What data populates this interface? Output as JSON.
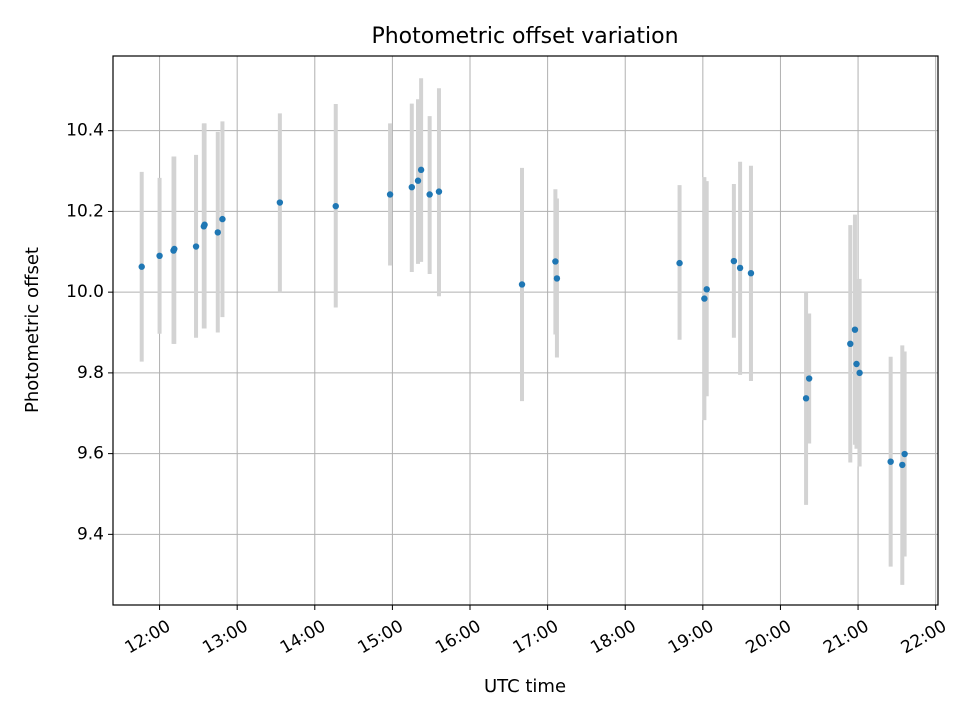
{
  "chart_data": {
    "type": "scatter",
    "title": "Photometric offset variation",
    "xlabel": "UTC time",
    "ylabel": "Photometric offset",
    "x_unit": "hours UTC",
    "xlim": [
      11.4,
      22.03
    ],
    "ylim": [
      9.225,
      10.585
    ],
    "grid": true,
    "x_ticks": [
      {
        "value": 12,
        "label": "12:00"
      },
      {
        "value": 13,
        "label": "13:00"
      },
      {
        "value": 14,
        "label": "14:00"
      },
      {
        "value": 15,
        "label": "15:00"
      },
      {
        "value": 16,
        "label": "16:00"
      },
      {
        "value": 17,
        "label": "17:00"
      },
      {
        "value": 18,
        "label": "18:00"
      },
      {
        "value": 19,
        "label": "19:00"
      },
      {
        "value": 20,
        "label": "20:00"
      },
      {
        "value": 21,
        "label": "21:00"
      },
      {
        "value": 22,
        "label": "22:00"
      }
    ],
    "y_ticks": [
      {
        "value": 9.4,
        "label": "9.4"
      },
      {
        "value": 9.6,
        "label": "9.6"
      },
      {
        "value": 9.8,
        "label": "9.8"
      },
      {
        "value": 10.0,
        "label": "10.0"
      },
      {
        "value": 10.2,
        "label": "10.2"
      },
      {
        "value": 10.4,
        "label": "10.4"
      }
    ],
    "colors": {
      "point": "#1f77b4",
      "errorbar": "#d3d3d3",
      "grid": "#b0b0b0"
    },
    "points": [
      {
        "x": 11.77,
        "y": 10.063,
        "low": 9.828,
        "high": 10.298
      },
      {
        "x": 12.0,
        "y": 10.09,
        "low": 9.897,
        "high": 10.283
      },
      {
        "x": 12.18,
        "y": 10.103,
        "low": 9.872,
        "high": 10.336
      },
      {
        "x": 12.19,
        "y": 10.107,
        "low": 9.872,
        "high": 10.336
      },
      {
        "x": 12.47,
        "y": 10.113,
        "low": 9.887,
        "high": 10.34
      },
      {
        "x": 12.57,
        "y": 10.163,
        "low": 9.91,
        "high": 10.418
      },
      {
        "x": 12.58,
        "y": 10.167,
        "low": 9.91,
        "high": 10.418
      },
      {
        "x": 12.75,
        "y": 10.148,
        "low": 9.9,
        "high": 10.397
      },
      {
        "x": 12.81,
        "y": 10.181,
        "low": 9.938,
        "high": 10.423
      },
      {
        "x": 13.55,
        "y": 10.222,
        "low": 10.0,
        "high": 10.443
      },
      {
        "x": 14.27,
        "y": 10.213,
        "low": 9.962,
        "high": 10.466
      },
      {
        "x": 14.97,
        "y": 10.242,
        "low": 10.066,
        "high": 10.418
      },
      {
        "x": 15.25,
        "y": 10.26,
        "low": 10.05,
        "high": 10.467
      },
      {
        "x": 15.33,
        "y": 10.276,
        "low": 10.07,
        "high": 10.478
      },
      {
        "x": 15.37,
        "y": 10.303,
        "low": 10.075,
        "high": 10.53
      },
      {
        "x": 15.48,
        "y": 10.242,
        "low": 10.045,
        "high": 10.436
      },
      {
        "x": 15.6,
        "y": 10.249,
        "low": 9.99,
        "high": 10.505
      },
      {
        "x": 16.67,
        "y": 10.019,
        "low": 9.73,
        "high": 10.308
      },
      {
        "x": 17.1,
        "y": 10.076,
        "low": 9.895,
        "high": 10.255
      },
      {
        "x": 17.12,
        "y": 10.034,
        "low": 9.838,
        "high": 10.232
      },
      {
        "x": 18.7,
        "y": 10.072,
        "low": 9.882,
        "high": 10.265
      },
      {
        "x": 19.02,
        "y": 9.984,
        "low": 9.683,
        "high": 10.285
      },
      {
        "x": 19.05,
        "y": 10.007,
        "low": 9.742,
        "high": 10.275
      },
      {
        "x": 19.4,
        "y": 10.077,
        "low": 9.887,
        "high": 10.268
      },
      {
        "x": 19.48,
        "y": 10.06,
        "low": 9.795,
        "high": 10.323
      },
      {
        "x": 19.62,
        "y": 10.047,
        "low": 9.78,
        "high": 10.313
      },
      {
        "x": 20.33,
        "y": 9.737,
        "low": 9.473,
        "high": 10.0
      },
      {
        "x": 20.37,
        "y": 9.786,
        "low": 9.625,
        "high": 9.947
      },
      {
        "x": 20.9,
        "y": 9.872,
        "low": 9.578,
        "high": 10.166
      },
      {
        "x": 20.96,
        "y": 9.907,
        "low": 9.622,
        "high": 10.192
      },
      {
        "x": 20.98,
        "y": 9.822,
        "low": 9.612,
        "high": 10.033
      },
      {
        "x": 21.02,
        "y": 9.8,
        "low": 9.568,
        "high": 10.033
      },
      {
        "x": 21.42,
        "y": 9.58,
        "low": 9.32,
        "high": 9.84
      },
      {
        "x": 21.57,
        "y": 9.572,
        "low": 9.275,
        "high": 9.868
      },
      {
        "x": 21.6,
        "y": 9.599,
        "low": 9.345,
        "high": 9.853
      }
    ]
  }
}
